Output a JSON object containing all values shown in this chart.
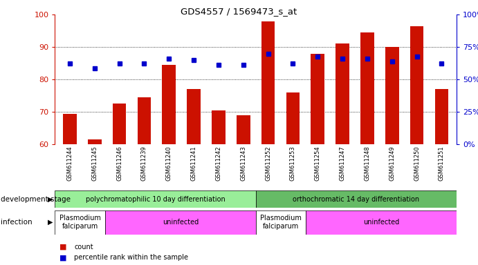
{
  "title": "GDS4557 / 1569473_s_at",
  "samples": [
    "GSM611244",
    "GSM611245",
    "GSM611246",
    "GSM611239",
    "GSM611240",
    "GSM611241",
    "GSM611242",
    "GSM611243",
    "GSM611252",
    "GSM611253",
    "GSM611254",
    "GSM611247",
    "GSM611248",
    "GSM611249",
    "GSM611250",
    "GSM611251"
  ],
  "counts": [
    69.5,
    61.5,
    72.5,
    74.5,
    84.5,
    77.0,
    70.5,
    69.0,
    98.0,
    76.0,
    88.0,
    91.0,
    94.5,
    90.0,
    96.5,
    77.0
  ],
  "percentiles_left_axis": [
    85.0,
    83.5,
    85.0,
    85.0,
    86.5,
    86.0,
    84.5,
    84.5,
    88.0,
    85.0,
    87.0,
    86.5,
    86.5,
    85.5,
    87.0,
    85.0
  ],
  "bar_color": "#cc1100",
  "dot_color": "#0000cc",
  "ymin": 60,
  "ymax": 100,
  "y2min": 0,
  "y2max": 100,
  "yticks": [
    60,
    70,
    80,
    90,
    100
  ],
  "y2ticks": [
    0,
    25,
    50,
    75,
    100
  ],
  "y2ticklabels": [
    "0%",
    "25%",
    "50%",
    "75%",
    "100%"
  ],
  "dev_stage_groups": [
    {
      "label": "polychromatophilic 10 day differentiation",
      "start": 0,
      "end": 8,
      "color": "#99ee99"
    },
    {
      "label": "orthochromatic 14 day differentiation",
      "start": 8,
      "end": 16,
      "color": "#66bb66"
    }
  ],
  "infection_groups": [
    {
      "label": "Plasmodium\nfalciparum",
      "start": 0,
      "end": 2,
      "color": "#ffffff"
    },
    {
      "label": "uninfected",
      "start": 2,
      "end": 8,
      "color": "#ff66ff"
    },
    {
      "label": "Plasmodium\nfalciparum",
      "start": 8,
      "end": 10,
      "color": "#ffffff"
    },
    {
      "label": "uninfected",
      "start": 10,
      "end": 16,
      "color": "#ff66ff"
    }
  ],
  "dev_stage_label": "development stage",
  "infection_label": "infection",
  "legend_count_label": "count",
  "legend_percentile_label": "percentile rank within the sample",
  "bg_color": "#ffffff",
  "tick_color_left": "#cc1100",
  "tick_color_right": "#0000cc",
  "xlabel_bg": "#cccccc"
}
